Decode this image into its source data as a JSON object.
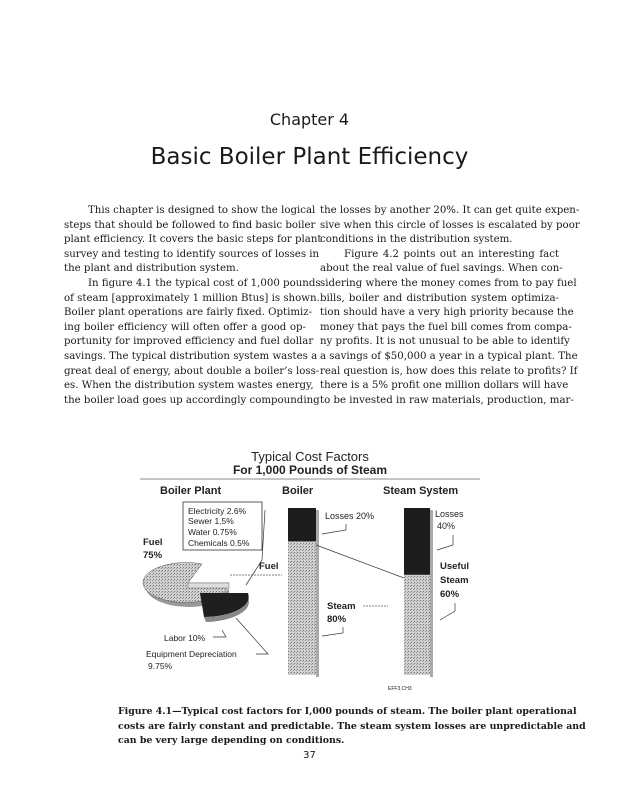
{
  "chapter_label": "Chapter 4",
  "chapter_title": "Basic Boiler Plant Efficiency",
  "left_column": [
    {
      "indent": true,
      "lines": [
        "This chapter is designed to show the logical",
        "steps that should be followed to find basic boiler",
        "plant efficiency. It covers the basic steps for plant",
        "survey and testing to identify sources of losses in",
        "the plant and distribution system."
      ]
    },
    {
      "indent": true,
      "lines": [
        "In figure 4.1 the typical cost of 1,000 pounds",
        "of steam [approximately 1 million Btus] is shown.",
        "Boiler plant operations are fairly fixed. Optimiz-",
        "ing boiler efficiency will often offer a good op-",
        "portunity for improved efficiency and fuel dollar",
        "savings. The typical distribution system wastes a",
        "great deal of energy, about double a boiler’s loss-",
        "es. When the distribution system wastes energy,",
        "the boiler load goes up accordingly compounding"
      ],
      "continues": true
    }
  ],
  "right_column": [
    {
      "indent": false,
      "lines": [
        "the losses by another 20%. It can get quite expen-",
        "sive when this circle of losses is escalated by poor",
        "conditions in the distribution system."
      ]
    },
    {
      "indent": true,
      "lines": [
        "Figure 4.2 points out an interesting fact",
        "about the real value of fuel savings. When con-",
        "sidering where the money comes from to pay fuel",
        "bills, boiler and distribution system optimiza-",
        "tion should have a very high priority because the",
        "money that pays the fuel bill comes from compa-",
        "ny profits. It is not unusual to be able to identify",
        "a savings of $50,000 a year in a typical plant. The",
        "real question is, how does this relate to profits? If",
        "there is a 5% profit one million dollars will have",
        "to be invested in raw materials, production, mar-"
      ],
      "continues": true
    }
  ],
  "figure": {
    "title": "Typical Cost Factors",
    "subtitle": "For 1,000 Pounds of Steam",
    "section_boiler_plant": "Boiler Plant",
    "section_boiler": "Boiler",
    "section_steam_system": "Steam System",
    "legend_box": [
      "Electricity 2.6%",
      "Sewer 1.5%",
      "Water 0.75%",
      "Chemicals 0.5%"
    ],
    "fuel_label": "Fuel",
    "fuel_pct": "75%",
    "fuel_arrow_label": "Fuel",
    "labor": "Labor 10%",
    "equipment_depreciation": "Equipment Depreciation",
    "equipment_depreciation_pct": "9.75%",
    "boiler_losses": "Losses 20%",
    "boiler_steam": "Steam",
    "boiler_steam_pct": "80%",
    "system_losses": "Losses",
    "system_losses_pct": "40%",
    "useful": "Useful",
    "useful_steam": "Steam",
    "useful_pct": "60%",
    "file_code": "EFF3.CH3",
    "boiler_loss_fraction": 0.2,
    "system_loss_fraction": 0.4,
    "colors": {
      "dark": "#1c1c1c",
      "stipple": "#bdbdbd"
    }
  },
  "caption": [
    "Figure 4.1—Typical cost factors for I,000 pounds of steam. The boiler plant operational",
    "costs are fairly constant and predictable. The steam system losses are unpredictable and",
    "can be very large depending on conditions."
  ],
  "page_number": "37"
}
